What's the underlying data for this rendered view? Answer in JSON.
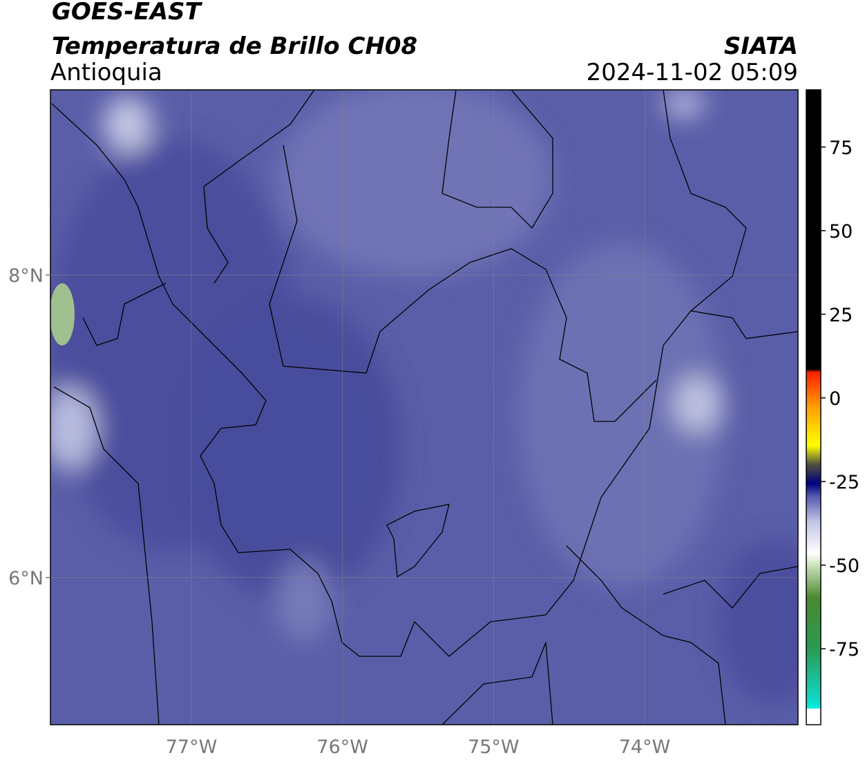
{
  "header": {
    "title": "GOES-EAST",
    "subtitle": "Temperatura de Brillo CH08",
    "region": "Antioquia",
    "source": "SIATA",
    "timestamp": "2024-11-02 05:09"
  },
  "map": {
    "xlim": [
      -77.933,
      -72.985
    ],
    "ylim": [
      5.027,
      9.224
    ],
    "grid": true,
    "xticks": [
      {
        "value": -77,
        "label": "77°W"
      },
      {
        "value": -76,
        "label": "76°W"
      },
      {
        "value": -75,
        "label": "75°W"
      },
      {
        "value": -74,
        "label": "74°W"
      }
    ],
    "yticks": [
      {
        "value": 6,
        "label": "6°N"
      },
      {
        "value": 8,
        "label": "8°N"
      }
    ]
  },
  "colorbar": {
    "lim": [
      -97.7,
      92.1
    ],
    "ticks": [
      -75,
      -50,
      -25,
      0,
      25,
      50,
      75
    ]
  }
}
